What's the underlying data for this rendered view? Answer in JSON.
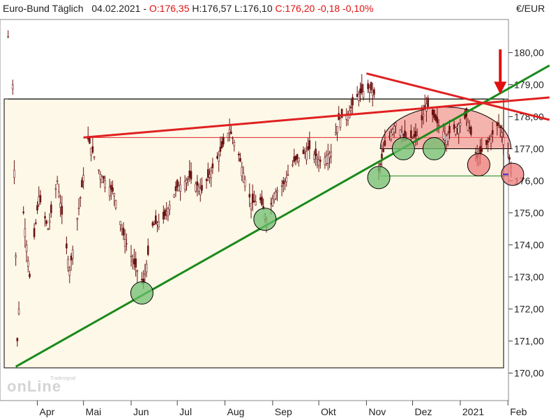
{
  "header": {
    "instrument": "Euro-Bund Täglich",
    "date": "04.02.2021",
    "open": "O:176,35",
    "high": "H:176,57",
    "low": "L:176,10",
    "close": "C:176,20",
    "change": "-0,18",
    "change_pct": "-0,10%"
  },
  "currency": "€/EUR",
  "logo": {
    "top": "Tradesignal®",
    "main": "onLine"
  },
  "colors": {
    "background": "#fdf8e8",
    "price_line": "#6b1111",
    "uptrend": "#1a8a1a",
    "downtrend": "#e02020",
    "support_circle": "#6fbf6f",
    "resistance_circle": "#ec7a7a",
    "arrow": "#e01010",
    "close_marker": "#3030d0"
  },
  "chart_data": {
    "type": "candlestick",
    "title": "Euro-Bund Täglich",
    "x_months": [
      "Apr",
      "Mai",
      "Jun",
      "Jul",
      "Aug",
      "Sep",
      "Okt",
      "Nov",
      "Dez",
      "2021",
      "Feb"
    ],
    "y_ticks": [
      "170,00",
      "171,00",
      "172,00",
      "173,00",
      "174,00",
      "175,00",
      "176,00",
      "177,00",
      "178,00",
      "179,00",
      "180,00"
    ],
    "ylim": [
      169.5,
      181.5
    ],
    "price_path": [
      [
        "2020-03-13",
        180.5
      ],
      [
        "2020-03-16",
        179.0
      ],
      [
        "2020-03-19",
        171.0
      ],
      [
        "2020-03-23",
        175.0
      ],
      [
        "2020-03-27",
        173.0
      ],
      [
        "2020-04-02",
        175.5
      ],
      [
        "2020-04-08",
        174.5
      ],
      [
        "2020-04-14",
        176.0
      ],
      [
        "2020-04-22",
        173.2
      ],
      [
        "2020-04-30",
        175.8
      ],
      [
        "2020-05-04",
        177.3
      ],
      [
        "2020-05-12",
        176.2
      ],
      [
        "2020-05-21",
        175.6
      ],
      [
        "2020-05-27",
        174.3
      ],
      [
        "2020-06-03",
        173.4
      ],
      [
        "2020-06-09",
        172.8
      ],
      [
        "2020-06-15",
        174.6
      ],
      [
        "2020-06-22",
        174.8
      ],
      [
        "2020-07-01",
        175.8
      ],
      [
        "2020-07-09",
        176.1
      ],
      [
        "2020-07-17",
        175.7
      ],
      [
        "2020-07-28",
        176.8
      ],
      [
        "2020-08-04",
        177.6
      ],
      [
        "2020-08-10",
        176.8
      ],
      [
        "2020-08-18",
        175.3
      ],
      [
        "2020-08-24",
        175.4
      ],
      [
        "2020-08-28",
        174.8
      ],
      [
        "2020-09-02",
        175.6
      ],
      [
        "2020-09-08",
        175.9
      ],
      [
        "2020-09-15",
        176.6
      ],
      [
        "2020-09-25",
        177.0
      ],
      [
        "2020-10-02",
        176.6
      ],
      [
        "2020-10-09",
        176.9
      ],
      [
        "2020-10-14",
        177.9
      ],
      [
        "2020-10-20",
        178.1
      ],
      [
        "2020-10-27",
        178.7
      ],
      [
        "2020-11-03",
        178.9
      ],
      [
        "2020-11-06",
        178.7
      ],
      [
        "2020-11-09",
        176.3
      ],
      [
        "2020-11-13",
        177.1
      ],
      [
        "2020-11-20",
        177.8
      ],
      [
        "2020-11-27",
        177.3
      ],
      [
        "2020-12-04",
        177.4
      ],
      [
        "2020-12-10",
        178.4
      ],
      [
        "2020-12-17",
        177.8
      ],
      [
        "2020-12-23",
        177.4
      ],
      [
        "2020-12-30",
        177.7
      ],
      [
        "2021-01-05",
        178.0
      ],
      [
        "2021-01-12",
        176.7
      ],
      [
        "2021-01-19",
        177.2
      ],
      [
        "2021-01-26",
        177.8
      ],
      [
        "2021-02-01",
        176.9
      ],
      [
        "2021-02-04",
        176.2
      ]
    ],
    "annotations": {
      "uptrend": {
        "from": [
          "2020-03-18",
          170.2
        ],
        "to": [
          "2021-02-28",
          179.6
        ]
      },
      "upper_channel": {
        "from": [
          "2020-05-01",
          177.35
        ],
        "to": [
          "2021-02-28",
          178.6
        ]
      },
      "downtrend": {
        "from": [
          "2020-11-01",
          179.35
        ],
        "to": [
          "2021-02-28",
          177.9
        ]
      },
      "horizontal_lines": [
        {
          "from": "2020-03-13",
          "to": "2021-02-28",
          "value": 178.55
        },
        {
          "from": "2020-05-01",
          "to": "2021-02-28",
          "value": 177.35
        },
        {
          "from": "2020-11-10",
          "to": "2021-02-28",
          "value": 176.15
        }
      ],
      "support_circles": [
        [
          "2020-06-08",
          172.5
        ],
        [
          "2020-08-27",
          174.8
        ],
        [
          "2020-11-09",
          176.1
        ],
        [
          "2020-11-25",
          177.0
        ],
        [
          "2020-12-15",
          177.0
        ]
      ],
      "resistance_circles": [
        [
          "2021-01-13",
          176.5
        ],
        [
          "2021-02-04",
          176.2
        ]
      ],
      "dome": {
        "from": "2020-11-10",
        "to": "2021-02-03",
        "base": 177.0,
        "top": 178.3
      },
      "arrow": {
        "at": "2021-01-27",
        "from": 180.1,
        "to": 178.7
      },
      "last_close": [
        "2021-02-04",
        176.2
      ]
    }
  }
}
